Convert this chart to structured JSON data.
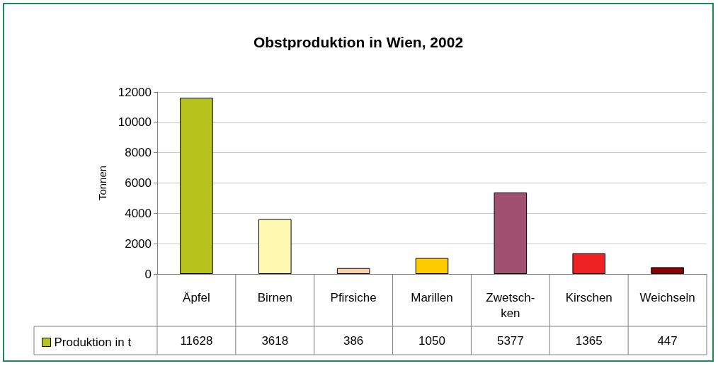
{
  "chart_data": {
    "type": "bar",
    "title": "Obstproduktion in Wien, 2002",
    "ylabel": "Tonnen",
    "categories": [
      "Äpfel",
      "Birnen",
      "Pfirsiche",
      "Marillen",
      "Zwetsch-\nken",
      "Kirschen",
      "Weichseln"
    ],
    "series": [
      {
        "name": "Produktion in t",
        "color": "#b8c21c",
        "colors": [
          "#b8c21c",
          "#fff8b0",
          "#f9cfa8",
          "#ffcc00",
          "#a05070",
          "#ee2222",
          "#8b0000"
        ],
        "values": [
          11628,
          3618,
          386,
          1050,
          5377,
          1365,
          447
        ]
      }
    ],
    "ylim": [
      0,
      12000
    ],
    "yticks": [
      0,
      2000,
      4000,
      6000,
      8000,
      10000,
      12000
    ],
    "grid": "y",
    "legend": "bottom left",
    "data_labels": true
  }
}
